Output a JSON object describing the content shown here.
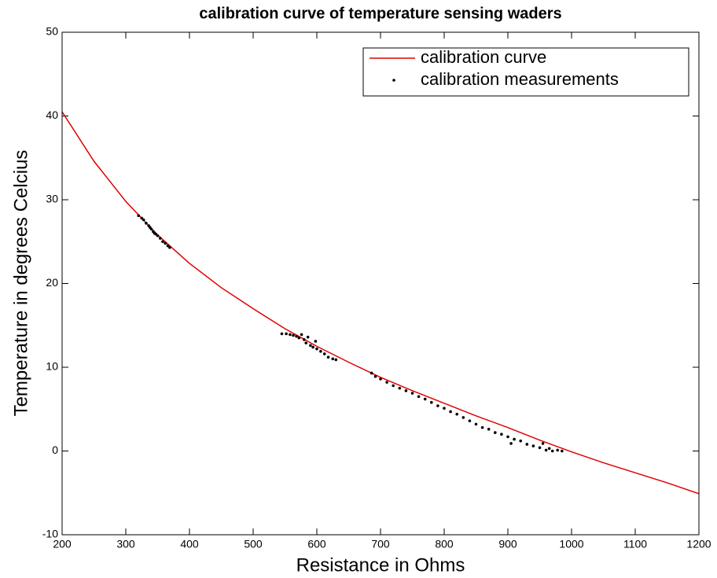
{
  "chart_data": {
    "type": "line",
    "title": "calibration curve of temperature sensing waders",
    "x_label": "Resistance in Ohms",
    "y_label": "Temperature in degrees Celcius",
    "xlim": [
      200,
      1200
    ],
    "xticks": [
      200,
      300,
      400,
      500,
      600,
      700,
      800,
      900,
      1000,
      1100,
      1200
    ],
    "ylim": [
      -10,
      50
    ],
    "yticks": [
      -10,
      0,
      10,
      20,
      30,
      40,
      50
    ],
    "legend": "top-right",
    "series": [
      {
        "name": "calibration curve",
        "type": "line",
        "color": "#e00000",
        "x": [
          200,
          250,
          300,
          350,
          400,
          450,
          500,
          550,
          600,
          650,
          700,
          750,
          800,
          850,
          900,
          950,
          1000,
          1050,
          1100,
          1150,
          1200
        ],
        "values": [
          40.5,
          34.6,
          29.8,
          25.8,
          22.4,
          19.5,
          17.0,
          14.6,
          12.5,
          10.6,
          8.8,
          7.2,
          5.7,
          4.2,
          2.8,
          1.3,
          -0.1,
          -1.4,
          -2.6,
          -3.8,
          -5.1
        ]
      },
      {
        "name": "calibration measurements",
        "type": "scatter",
        "color": "#000000",
        "x": [
          320,
          325,
          328,
          332,
          336,
          340,
          343,
          347,
          350,
          354,
          358,
          362,
          366,
          369,
          338,
          345,
          545,
          552,
          558,
          563,
          568,
          572,
          576,
          580,
          583,
          586,
          590,
          594,
          598,
          600,
          606,
          612,
          618,
          625,
          630,
          686,
          692,
          700,
          710,
          720,
          730,
          740,
          750,
          760,
          770,
          780,
          790,
          800,
          810,
          820,
          830,
          840,
          850,
          860,
          870,
          880,
          890,
          900,
          910,
          920,
          930,
          940,
          950,
          955,
          960,
          965,
          970,
          978,
          985,
          905
        ],
        "values": [
          28.1,
          27.8,
          27.6,
          27.2,
          26.9,
          26.5,
          26.2,
          25.9,
          25.7,
          25.4,
          25.0,
          24.8,
          24.5,
          24.3,
          26.7,
          26.0,
          14.0,
          14.0,
          13.9,
          13.8,
          13.7,
          13.5,
          13.9,
          13.3,
          12.9,
          13.6,
          12.6,
          12.4,
          13.1,
          12.2,
          11.9,
          11.6,
          11.2,
          11.0,
          10.9,
          9.3,
          8.9,
          8.6,
          8.2,
          7.8,
          7.5,
          7.2,
          6.9,
          6.5,
          6.2,
          5.8,
          5.4,
          5.1,
          4.7,
          4.4,
          4.0,
          3.6,
          3.2,
          2.8,
          2.6,
          2.2,
          2.0,
          1.7,
          1.4,
          1.2,
          0.8,
          0.6,
          0.4,
          0.9,
          0.1,
          0.3,
          0.0,
          0.1,
          0.0,
          0.9
        ]
      }
    ]
  }
}
